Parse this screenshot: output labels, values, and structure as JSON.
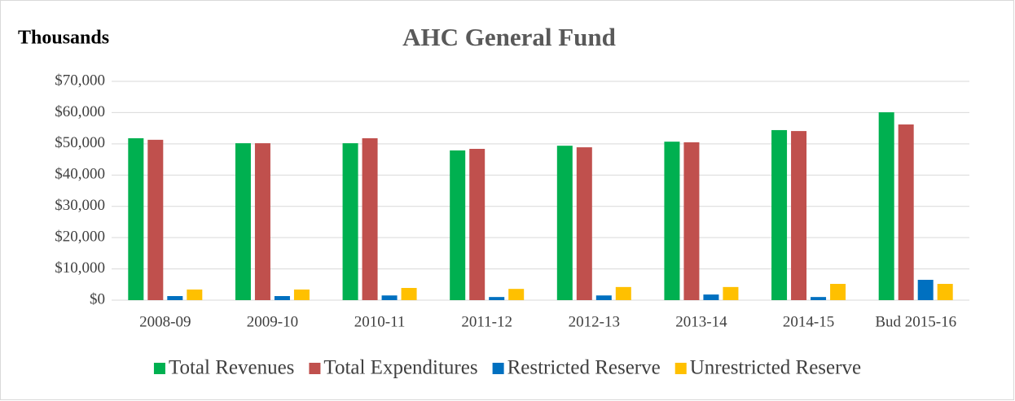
{
  "chart_data": {
    "type": "bar",
    "title": "AHC General Fund",
    "unit_label": "Thousands",
    "categories": [
      "2008-09",
      "2009-10",
      "2010-11",
      "2011-12",
      "2012-13",
      "2013-14",
      "2014-15",
      "Bud 2015-16"
    ],
    "series": [
      {
        "name": "Total Revenues",
        "color": "#00b050",
        "values": [
          51800,
          50200,
          50200,
          47900,
          49400,
          50700,
          54400,
          60100
        ]
      },
      {
        "name": "Total Expenditures",
        "color": "#c0504d",
        "values": [
          51300,
          50200,
          51800,
          48400,
          48900,
          50500,
          54100,
          56200
        ]
      },
      {
        "name": "Restricted Reserve",
        "color": "#0070c0",
        "values": [
          1300,
          1300,
          1500,
          1000,
          1500,
          1800,
          1000,
          6500
        ]
      },
      {
        "name": "Unrestricted Reserve",
        "color": "#ffc000",
        "values": [
          3400,
          3400,
          3900,
          3600,
          4200,
          4200,
          5200,
          5200
        ]
      }
    ],
    "ylim": [
      0,
      70000
    ],
    "yticks": [
      {
        "value": 0,
        "label": "$0"
      },
      {
        "value": 10000,
        "label": "$10,000"
      },
      {
        "value": 20000,
        "label": "$20,000"
      },
      {
        "value": 30000,
        "label": "$30,000"
      },
      {
        "value": 40000,
        "label": "$40,000"
      },
      {
        "value": 50000,
        "label": "$50,000"
      },
      {
        "value": 60000,
        "label": "$60,000"
      },
      {
        "value": 70000,
        "label": "$70,000"
      }
    ],
    "grid": true,
    "legend": "bottom"
  }
}
